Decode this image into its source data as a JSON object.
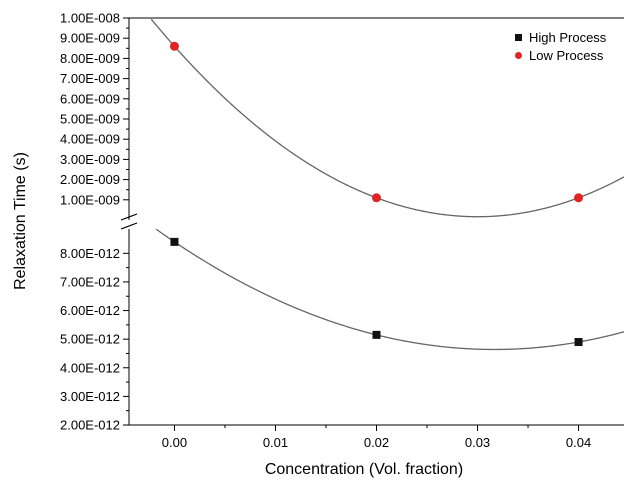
{
  "chart_data": {
    "type": "scatter",
    "title": "",
    "xlabel": "Concentration (Vol. fraction)",
    "ylabel": "Relaxation Time (s)",
    "xlim": [
      -0.0045,
      0.0445
    ],
    "x_ticks": [
      0.0,
      0.01,
      0.02,
      0.03,
      0.04
    ],
    "x_tick_labels": [
      "0.00",
      "0.01",
      "0.02",
      "0.03",
      "0.04"
    ],
    "broken_y_axis": true,
    "upper_panel": {
      "ylim": [
        0,
        1e-08
      ],
      "ticks": [
        1e-09,
        2e-09,
        3e-09,
        4e-09,
        5e-09,
        6e-09,
        7e-09,
        8e-09,
        9e-09,
        1e-08
      ],
      "tick_labels": [
        "1.00E-009",
        "2.00E-009",
        "3.00E-009",
        "4.00E-009",
        "5.00E-009",
        "6.00E-009",
        "7.00E-009",
        "8.00E-009",
        "9.00E-009",
        "1.00E-008"
      ]
    },
    "lower_panel": {
      "ylim": [
        2e-12,
        8.85e-12
      ],
      "ticks": [
        2e-12,
        3e-12,
        4e-12,
        5e-12,
        6e-12,
        7e-12,
        8e-12
      ],
      "tick_labels": [
        "2.00E-012",
        "3.00E-012",
        "4.00E-012",
        "5.00E-012",
        "6.00E-012",
        "7.00E-012",
        "8.00E-012"
      ]
    },
    "series": [
      {
        "name": "High Process",
        "panel": "lower",
        "marker": "square",
        "color": "#111111",
        "x": [
          0.0,
          0.02,
          0.04
        ],
        "y": [
          8.4e-12,
          5.15e-12,
          4.9e-12
        ],
        "fit_curve": true
      },
      {
        "name": "Low Process",
        "panel": "upper",
        "marker": "circle",
        "color": "#e02424",
        "x": [
          0.0,
          0.02,
          0.04
        ],
        "y": [
          8.6e-09,
          1.1e-09,
          1.1e-09
        ],
        "fit_curve": true
      }
    ],
    "legend_position": "top-right",
    "curve_color": "#666666"
  }
}
